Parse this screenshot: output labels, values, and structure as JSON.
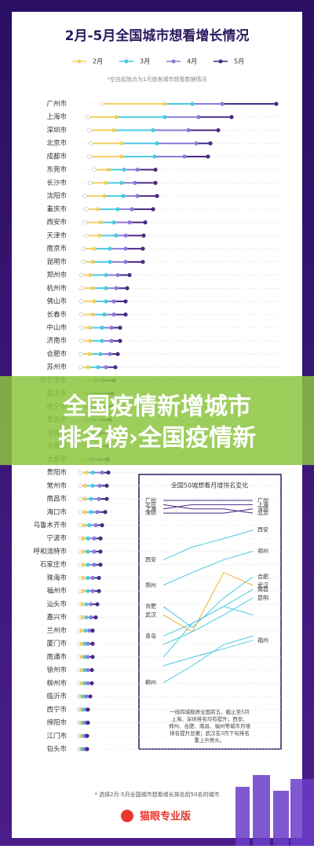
{
  "chart_data": [
    {
      "type": "dotrange",
      "title": "2月-5月全国城市想看增长情况",
      "note": "*空白起始点为1月底各城市想看数据情况",
      "categories": [
        "广州市",
        "上海市",
        "深圳市",
        "北京市",
        "成都市",
        "东莞市",
        "长沙市",
        "沈阳市",
        "重庆市",
        "西安市",
        "天津市",
        "南京市",
        "昆明市",
        "郑州市",
        "杭州市",
        "佛山市",
        "长春市",
        "中山市",
        "济南市",
        "合肥市",
        "苏州市",
        "哈尔滨市",
        "武汉市",
        "南宁市",
        "青岛市",
        "无锡市",
        "大连市",
        "太原市",
        "贵阳市",
        "常州市",
        "南昌市",
        "海口市",
        "乌鲁木齐市",
        "宁波市",
        "呼和浩特市",
        "石家庄市",
        "珠海市",
        "福州市",
        "汕头市",
        "嘉兴市",
        "兰州市",
        "厦门市",
        "南通市",
        "徐州市",
        "柳州市",
        "临沂市",
        "西宁市",
        "绵阳市",
        "江门市",
        "包头市"
      ],
      "start": {
        "color": "#ffffff",
        "values": [
          30,
          12,
          14,
          16,
          14,
          20,
          15,
          8,
          10,
          8,
          10,
          6,
          6,
          4,
          4,
          4,
          4,
          4,
          4,
          3,
          3,
          3,
          3,
          3,
          3,
          3,
          3,
          2,
          2,
          2,
          2,
          2,
          2,
          2,
          2,
          2,
          2,
          2,
          2,
          2,
          1,
          1,
          1,
          1,
          1,
          1,
          1,
          1,
          1,
          1
        ]
      },
      "series": [
        {
          "name": "2月",
          "color": "#f3cf63",
          "values": [
            110,
            48,
            45,
            55,
            55,
            38,
            35,
            33,
            25,
            28,
            27,
            20,
            18,
            15,
            18,
            20,
            18,
            15,
            15,
            14,
            12,
            12,
            12,
            10,
            10,
            10,
            10,
            8,
            10,
            8,
            8,
            8,
            7,
            6,
            6,
            6,
            6,
            6,
            5,
            5,
            4,
            4,
            4,
            4,
            4,
            3,
            3,
            3,
            3,
            3
          ]
        },
        {
          "name": "3月",
          "color": "#4cc9e0",
          "values": [
            145,
            110,
            95,
            100,
            97,
            58,
            55,
            57,
            50,
            45,
            48,
            40,
            40,
            35,
            35,
            35,
            33,
            30,
            30,
            28,
            25,
            22,
            22,
            22,
            20,
            20,
            18,
            16,
            18,
            18,
            16,
            16,
            14,
            12,
            12,
            12,
            12,
            12,
            10,
            10,
            9,
            8,
            8,
            8,
            8,
            6,
            6,
            6,
            6,
            5
          ]
        },
        {
          "name": "4月",
          "color": "#8a7bd6",
          "values": [
            183,
            153,
            140,
            150,
            135,
            75,
            72,
            75,
            68,
            65,
            60,
            60,
            60,
            50,
            48,
            45,
            45,
            42,
            42,
            40,
            35,
            32,
            32,
            30,
            30,
            28,
            26,
            26,
            30,
            27,
            26,
            24,
            22,
            20,
            20,
            20,
            18,
            18,
            16,
            16,
            14,
            12,
            12,
            12,
            12,
            10,
            10,
            9,
            9,
            8
          ]
        },
        {
          "name": "5月",
          "color": "#4a2a85",
          "values": [
            252,
            195,
            178,
            168,
            165,
            98,
            98,
            100,
            95,
            85,
            83,
            82,
            82,
            65,
            62,
            60,
            60,
            53,
            53,
            50,
            47,
            45,
            43,
            42,
            40,
            40,
            38,
            37,
            38,
            36,
            36,
            34,
            30,
            28,
            28,
            28,
            26,
            26,
            24,
            22,
            18,
            18,
            18,
            17,
            17,
            15,
            12,
            12,
            11,
            11
          ]
        }
      ],
      "xlim": [
        0,
        260
      ]
    },
    {
      "type": "bump",
      "title": "全国50城想看月增排名变化",
      "cities": [
        {
          "name": "广州",
          "color": "#4a2a85",
          "show": "both",
          "ranks": [
            1,
            1,
            1,
            1
          ]
        },
        {
          "name": "北京",
          "color": "#4a2a85",
          "show": "both",
          "ranks": [
            2,
            3,
            3,
            4
          ]
        },
        {
          "name": "上海",
          "color": "#4a2a85",
          "show": "both",
          "ranks": [
            3,
            2,
            2,
            2
          ]
        },
        {
          "name": "深圳",
          "color": "#4a2a85",
          "show": "both",
          "ranks": [
            4,
            4,
            4,
            3
          ]
        },
        {
          "name": "西安",
          "color": "#4cc9e0",
          "show": "both",
          "ranks": [
            15,
            12,
            10,
            8
          ]
        },
        {
          "name": "郑州",
          "color": "#4cc9e0",
          "show": "both",
          "ranks": [
            21,
            18,
            15,
            13
          ]
        },
        {
          "name": "合肥",
          "color": "#4cc9e0",
          "show": "both",
          "ranks": [
            26,
            31,
            24,
            19
          ]
        },
        {
          "name": "武汉",
          "color": "#e8b62a",
          "show": "both",
          "ranks": [
            28,
            32,
            18,
            21
          ]
        },
        {
          "name": "青岛",
          "color": "#4cc9e0",
          "show": "left",
          "ranks": [
            33,
            30,
            26,
            28
          ]
        },
        {
          "name": "柳州",
          "color": "#4cc9e0",
          "show": "left",
          "ranks": [
            44,
            40,
            35,
            33
          ]
        },
        {
          "name": "南昌",
          "color": "#4cc9e0",
          "show": "right",
          "ranks": [
            38,
            30,
            26,
            22
          ]
        },
        {
          "name": "昆明",
          "color": "#4cc9e0",
          "show": "right",
          "ranks": [
            35,
            32,
            28,
            24
          ]
        },
        {
          "name": "福州",
          "color": "#4cc9e0",
          "show": "right",
          "ranks": [
            40,
            38,
            36,
            34
          ]
        }
      ],
      "ylim": [
        1,
        50
      ],
      "note": [
        "一线四城稳居全国前五，截止至5月",
        "上海、深圳排名均有提升；西安、",
        "郑州、合肥、南昌、福州等城市月增",
        "排名提升显著；武汉在3月下旬排名",
        "重上升势头。"
      ]
    }
  ],
  "banner": {
    "lines": [
      "全国疫情新增城市",
      "排名榜›全国疫情新"
    ]
  },
  "footer": {
    "note": "* 选择2月-5月全国城市想看增长排名前50名的城市",
    "brand": "猫眼专业版"
  }
}
